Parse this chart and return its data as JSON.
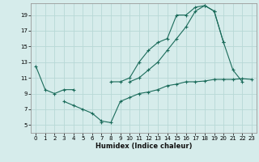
{
  "title": "",
  "xlabel": "Humidex (Indice chaleur)",
  "background_color": "#d6eceb",
  "grid_color": "#b8d8d6",
  "line_color": "#1a6b5a",
  "xlim": [
    -0.5,
    23.5
  ],
  "ylim": [
    4.0,
    20.5
  ],
  "yticks": [
    5,
    7,
    9,
    11,
    13,
    15,
    17,
    19
  ],
  "xticks": [
    0,
    1,
    2,
    3,
    4,
    5,
    6,
    7,
    8,
    9,
    10,
    11,
    12,
    13,
    14,
    15,
    16,
    17,
    18,
    19,
    20,
    21,
    22,
    23
  ],
  "line1": [
    12.5,
    9.5,
    9.0,
    9.5,
    9.5,
    null,
    null,
    null,
    10.5,
    10.5,
    11.0,
    13.0,
    14.5,
    15.5,
    16.0,
    19.0,
    19.0,
    20.0,
    20.2,
    19.5,
    15.5,
    12.0,
    10.5,
    null
  ],
  "line2": [
    null,
    null,
    null,
    8.0,
    7.5,
    7.0,
    6.5,
    5.5,
    5.3,
    8.0,
    8.5,
    9.0,
    9.2,
    9.5,
    10.0,
    10.2,
    10.5,
    10.5,
    10.6,
    10.8,
    10.8,
    10.8,
    10.9,
    10.8
  ],
  "line3": [
    null,
    null,
    null,
    null,
    null,
    null,
    null,
    5.3,
    null,
    null,
    10.5,
    11.0,
    12.0,
    13.0,
    14.5,
    16.0,
    17.5,
    19.5,
    20.2,
    19.5,
    15.5,
    null,
    null,
    null
  ]
}
